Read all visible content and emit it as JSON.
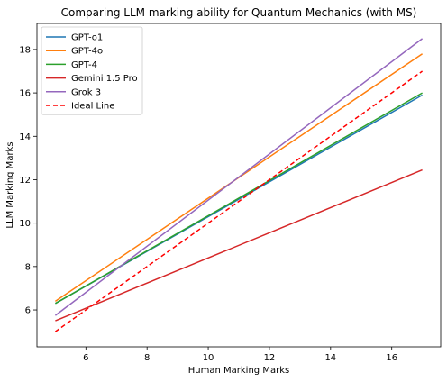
{
  "chart_data": {
    "type": "line",
    "title": "Comparing LLM marking ability for Quantum Mechanics (with MS)",
    "xlabel": "Human Marking Marks",
    "ylabel": "LLM Marking Marks",
    "xlim": [
      4.4,
      17.6
    ],
    "ylim": [
      4.3,
      19.2
    ],
    "xticks": [
      6,
      8,
      10,
      12,
      14,
      16
    ],
    "yticks": [
      6,
      8,
      10,
      12,
      14,
      16,
      18
    ],
    "grid": false,
    "legend": "top-left",
    "series": [
      {
        "name": "GPT-o1",
        "color": "#1f77b4",
        "dash": "solid",
        "x": [
          5,
          17
        ],
        "y": [
          6.3,
          15.9
        ]
      },
      {
        "name": "GPT-4o",
        "color": "#ff7f0e",
        "dash": "solid",
        "x": [
          5,
          17
        ],
        "y": [
          6.4,
          17.8
        ]
      },
      {
        "name": "GPT-4",
        "color": "#2ca02c",
        "dash": "solid",
        "x": [
          5,
          17
        ],
        "y": [
          6.3,
          16.0
        ]
      },
      {
        "name": "Gemini 1.5 Pro",
        "color": "#d62728",
        "dash": "solid",
        "x": [
          5,
          17
        ],
        "y": [
          5.5,
          12.45
        ]
      },
      {
        "name": "Grok 3",
        "color": "#9467bd",
        "dash": "solid",
        "x": [
          5,
          17
        ],
        "y": [
          5.75,
          18.5
        ]
      },
      {
        "name": "Ideal Line",
        "color": "#ff0000",
        "dash": "dashed",
        "x": [
          5,
          17
        ],
        "y": [
          5.0,
          17.0
        ]
      }
    ]
  }
}
